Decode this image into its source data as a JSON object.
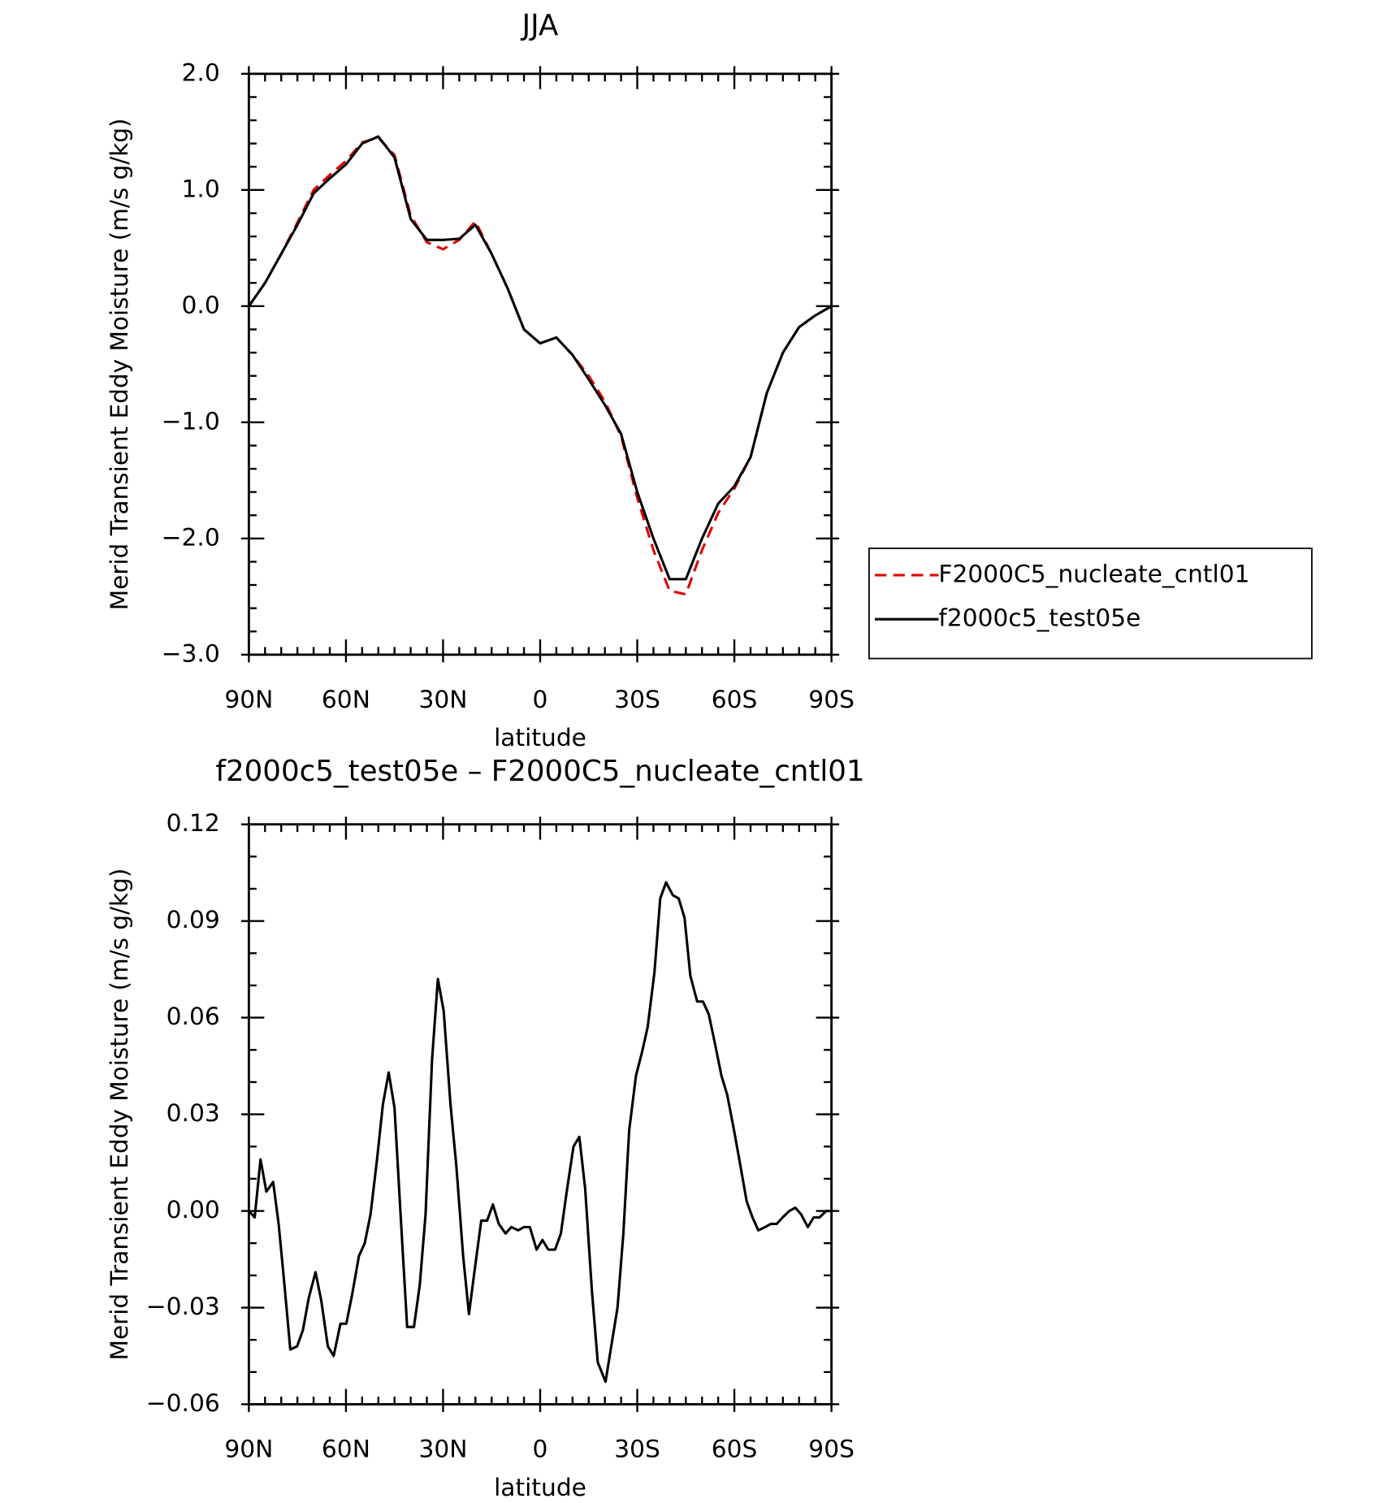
{
  "chart_data": [
    {
      "type": "line",
      "title": "JJA",
      "xlabel": "latitude",
      "ylabel": "Merid Transient Eddy Moisture (m/s g/kg)",
      "x": [
        90,
        85,
        80,
        75,
        70,
        65,
        60,
        55,
        50,
        45,
        40,
        35,
        30,
        25,
        20,
        15,
        10,
        5,
        0,
        -5,
        -10,
        -15,
        -20,
        -25,
        -30,
        -35,
        -40,
        -45,
        -50,
        -55,
        -60,
        -65,
        -70,
        -75,
        -80,
        -85,
        -90
      ],
      "series": [
        {
          "name": "F2000C5_nucleate_cntl01",
          "color": "#e00000",
          "dash": "dashed",
          "values": [
            0.0,
            0.2,
            0.45,
            0.72,
            1.0,
            1.13,
            1.25,
            1.41,
            1.45,
            1.3,
            0.78,
            0.55,
            0.49,
            0.57,
            0.73,
            0.45,
            0.15,
            -0.2,
            -0.32,
            -0.27,
            -0.42,
            -0.6,
            -0.82,
            -1.12,
            -1.65,
            -2.1,
            -2.45,
            -2.48,
            -2.1,
            -1.78,
            -1.57,
            -1.3,
            -0.75,
            -0.4,
            -0.18,
            -0.08,
            0.0
          ]
        },
        {
          "name": "f2000c5_test05e",
          "color": "#000000",
          "dash": "solid",
          "values": [
            0.0,
            0.2,
            0.45,
            0.7,
            0.97,
            1.1,
            1.22,
            1.4,
            1.46,
            1.28,
            0.75,
            0.57,
            0.57,
            0.58,
            0.7,
            0.45,
            0.15,
            -0.2,
            -0.32,
            -0.27,
            -0.42,
            -0.63,
            -0.85,
            -1.1,
            -1.6,
            -2.0,
            -2.35,
            -2.35,
            -2.0,
            -1.7,
            -1.55,
            -1.3,
            -0.75,
            -0.4,
            -0.18,
            -0.08,
            0.0
          ]
        }
      ],
      "xlim": [
        90,
        -90
      ],
      "xticks": [
        {
          "value": 90,
          "label": "90N"
        },
        {
          "value": 60,
          "label": "60N"
        },
        {
          "value": 30,
          "label": "30N"
        },
        0,
        {
          "value": -30,
          "label": "30S"
        },
        {
          "value": -60,
          "label": "60S"
        },
        {
          "value": -90,
          "label": "90S"
        }
      ],
      "ylim": [
        -3,
        2
      ],
      "yticks": [
        {
          "value": -3,
          "label": "−3.0"
        },
        {
          "value": -2,
          "label": "−2.0"
        },
        {
          "value": -1,
          "label": "−1.0"
        },
        {
          "value": 0,
          "label": "0.0"
        },
        {
          "value": 1,
          "label": "1.0"
        },
        {
          "value": 2,
          "label": "2.0"
        }
      ],
      "legend": "right"
    },
    {
      "type": "line",
      "title": "f2000c5_test05e – F2000C5_nucleate_cntl01",
      "xlabel": "latitude",
      "ylabel": "Merid Transient Eddy Moisture (m/s g/kg)",
      "x": [
        90,
        88.2,
        86.4,
        84.6,
        82.5,
        80.8,
        79,
        77.2,
        75.1,
        73.3,
        71.5,
        69.4,
        67.6,
        65.6,
        63.8,
        61.7,
        59.9,
        58.1,
        56,
        54.2,
        52.4,
        50.4,
        48.6,
        46.8,
        45,
        42.9,
        41.1,
        39,
        37.2,
        35.4,
        33.4,
        31.6,
        29.8,
        27.7,
        25.9,
        23.8,
        22,
        20.2,
        18.2,
        16.4,
        14.6,
        12.8,
        10.7,
        8.9,
        6.8,
        5,
        3.2,
        1.1,
        -0.7,
        -2.5,
        -4.6,
        -6.4,
        -8.2,
        -10.3,
        -12.1,
        -13.9,
        -16,
        -17.8,
        -20.2,
        -21.8,
        -23.9,
        -25.7,
        -27.5,
        -29.6,
        -31.4,
        -33.2,
        -35.3,
        -37.1,
        -38.9,
        -41,
        -42.8,
        -44.6,
        -46.4,
        -48.5,
        -50.3,
        -52.1,
        -54.2,
        -56,
        -57.8,
        -59.9,
        -61.7,
        -63.8,
        -65.6,
        -67.4,
        -69.5,
        -71.3,
        -73.1,
        -74.9,
        -77,
        -78.8,
        -80.6,
        -82.7,
        -84.5,
        -86.3,
        -88.4,
        -90
      ],
      "values": [
        0.0,
        -0.002,
        0.016,
        0.006,
        0.009,
        -0.004,
        -0.023,
        -0.043,
        -0.042,
        -0.037,
        -0.027,
        -0.019,
        -0.028,
        -0.042,
        -0.045,
        -0.035,
        -0.035,
        -0.026,
        -0.014,
        -0.01,
        -0.001,
        0.016,
        0.033,
        0.043,
        0.032,
        -0.005,
        -0.036,
        -0.036,
        -0.023,
        -0.001,
        0.047,
        0.072,
        0.062,
        0.033,
        0.014,
        -0.014,
        -0.032,
        -0.018,
        -0.003,
        -0.003,
        0.002,
        -0.004,
        -0.007,
        -0.005,
        -0.006,
        -0.005,
        -0.005,
        -0.012,
        -0.009,
        -0.012,
        -0.012,
        -0.007,
        0.006,
        0.02,
        0.023,
        0.007,
        -0.025,
        -0.047,
        -0.053,
        -0.043,
        -0.03,
        -0.007,
        0.025,
        0.042,
        0.049,
        0.057,
        0.074,
        0.097,
        0.102,
        0.098,
        0.097,
        0.091,
        0.073,
        0.065,
        0.065,
        0.061,
        0.051,
        0.042,
        0.036,
        0.025,
        0.015,
        0.003,
        -0.002,
        -0.006,
        -0.005,
        -0.004,
        -0.004,
        -0.002,
        0.0,
        0.001,
        -0.001,
        -0.005,
        -0.002,
        -0.002,
        0.0,
        0.0
      ],
      "color": "#000000",
      "xlim": [
        90,
        -90
      ],
      "xticks": [
        {
          "value": 90,
          "label": "90N"
        },
        {
          "value": 60,
          "label": "60N"
        },
        {
          "value": 30,
          "label": "30N"
        },
        0,
        {
          "value": -30,
          "label": "30S"
        },
        {
          "value": -60,
          "label": "60S"
        },
        {
          "value": -90,
          "label": "90S"
        }
      ],
      "ylim": [
        -0.06,
        0.12
      ],
      "yticks": [
        {
          "value": -0.06,
          "label": "−0.06"
        },
        {
          "value": -0.03,
          "label": "−0.03"
        },
        {
          "value": 0,
          "label": "0.00"
        },
        {
          "value": 0.03,
          "label": "0.03"
        },
        {
          "value": 0.06,
          "label": "0.06"
        },
        {
          "value": 0.09,
          "label": "0.09"
        },
        0.12
      ]
    }
  ]
}
